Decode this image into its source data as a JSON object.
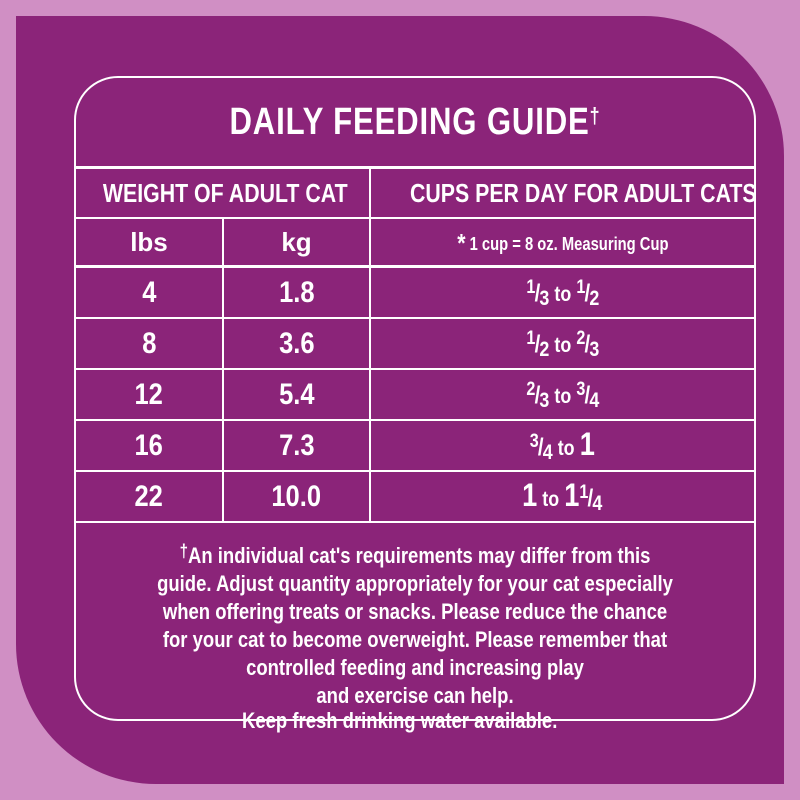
{
  "title": "DAILY FEEDING GUIDE",
  "title_mark": "†",
  "colors": {
    "background": "#d08fc4",
    "panel": "#8b2479",
    "text": "#ffffff"
  },
  "table": {
    "header_weight": "WEIGHT OF ADULT CAT",
    "header_cups": "CUPS PER DAY FOR ADULT CATS*",
    "col_lbs": "lbs",
    "col_kg": "kg",
    "cup_note_mark": "*",
    "cup_note": "1 cup = 8 oz. Measuring Cup",
    "to_label": "to",
    "rows": [
      {
        "lbs": "4",
        "kg": "1.8",
        "cups": "1/3 to 1/2",
        "from": {
          "num": "1",
          "den": "3"
        },
        "to": {
          "num": "1",
          "den": "2"
        }
      },
      {
        "lbs": "8",
        "kg": "3.6",
        "cups": "1/2 to 2/3",
        "from": {
          "num": "1",
          "den": "2"
        },
        "to": {
          "num": "2",
          "den": "3"
        }
      },
      {
        "lbs": "12",
        "kg": "5.4",
        "cups": "2/3 to 3/4",
        "from": {
          "num": "2",
          "den": "3"
        },
        "to": {
          "num": "3",
          "den": "4"
        }
      },
      {
        "lbs": "16",
        "kg": "7.3",
        "cups": "3/4 to 1",
        "from": {
          "num": "3",
          "den": "4"
        },
        "to": {
          "whole": "1"
        }
      },
      {
        "lbs": "22",
        "kg": "10.0",
        "cups": "1 to 1 1/4",
        "from": {
          "whole": "1"
        },
        "to": {
          "whole": "1",
          "num": "1",
          "den": "4"
        }
      }
    ]
  },
  "disclaimer": {
    "mark": "†",
    "lines": [
      "An individual cat's requirements may differ from this",
      "guide. Adjust quantity appropriately for your cat especially",
      "when offering treats or snacks. Please reduce the chance",
      "for your cat to become overweight. Please remember that",
      "controlled feeding and increasing play",
      "and exercise can help."
    ]
  },
  "footer": "Keep fresh drinking water available."
}
